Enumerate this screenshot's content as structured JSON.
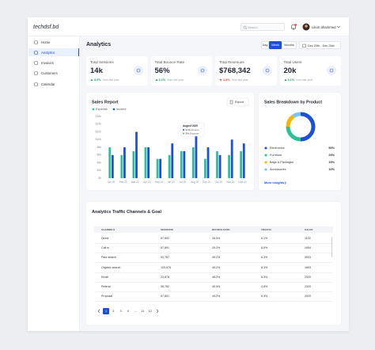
{
  "header": {
    "logo": "techdsf.bd",
    "search": "Search",
    "user": "Likon ahammed"
  },
  "sidebar": {
    "items": [
      "Home",
      "Analytics",
      "Invoices",
      "Customers",
      "Calendar"
    ],
    "active": 1
  },
  "page": {
    "title": "Analytics",
    "periods": [
      "Day",
      "Week",
      "Months"
    ],
    "active_period": 1,
    "date_range": "Dec 20th - Dec 26th"
  },
  "kpis": [
    {
      "label": "Total Sessions",
      "value": "14k",
      "change": "3.5%",
      "trend": "up",
      "note": "from last year"
    },
    {
      "label": "Total Bounce Rate",
      "value": "56%",
      "change": "3.1%",
      "trend": "up",
      "note": "from last year"
    },
    {
      "label": "Total Revenues",
      "value": "$768,342",
      "change": "1.8%",
      "trend": "down",
      "note": "from last year"
    },
    {
      "label": "Total Users",
      "value": "20k",
      "change": "3.1%",
      "trend": "up",
      "note": "from last year"
    }
  ],
  "chart_data": [
    {
      "type": "bar",
      "title": "Sales Report",
      "button": "Export",
      "categories": [
        "Jan 20",
        "Feb 20",
        "Mar 20",
        "Apr 20",
        "May 20",
        "Jun 20",
        "Jul 20",
        "Aug 20",
        "Sep 20",
        "Oct 20",
        "Nov 20",
        "Dec 20"
      ],
      "series": [
        {
          "name": "Expense",
          "color": "#2bc196",
          "values": [
            8000,
            6000,
            7000,
            8000,
            5000,
            6000,
            7000,
            8000,
            5000,
            7000,
            6000,
            7000
          ]
        },
        {
          "name": "Income",
          "color": "#1d4fd7",
          "values": [
            6000,
            8000,
            12000,
            8000,
            5000,
            9000,
            7000,
            12000,
            8000,
            6000,
            10000,
            9000
          ]
        }
      ],
      "ylim": [
        0,
        16000
      ],
      "yticks": [
        {
          "value": 0,
          "label": "$0"
        },
        {
          "value": 2000,
          "label": "$2k"
        },
        {
          "value": 4000,
          "label": "$4k"
        },
        {
          "value": 6000,
          "label": "$6k"
        },
        {
          "value": 8000,
          "label": "$8k"
        },
        {
          "value": 10000,
          "label": "$10k"
        },
        {
          "value": 12000,
          "label": "$12k"
        },
        {
          "value": 14000,
          "label": "$14k"
        },
        {
          "value": 16000,
          "label": "$16k"
        }
      ],
      "grid": false,
      "tooltip": {
        "title": "August 2020",
        "lines": [
          "$12k Income",
          "$8k Expense"
        ]
      }
    },
    {
      "type": "pie",
      "title": "Sales Breakdown by Product",
      "categories": [
        "Electronics",
        "Furniture",
        "Bags & Packages",
        "Accessories"
      ],
      "values": [
        50,
        25,
        15,
        10
      ],
      "value_labels": [
        "50%",
        "25%",
        "15%",
        "10%"
      ],
      "colors": [
        "#1d4fd7",
        "#2bc196",
        "#f4b400",
        "#7cc3f7"
      ],
      "donut": true,
      "link": "More insights"
    }
  ],
  "table": {
    "title": "Analytics Traffic Channels & Goal",
    "columns": [
      "CHANNELS",
      "SESSIONS",
      "BOUNCE RATE",
      "TRAFFIC",
      "SALES"
    ],
    "rows": [
      [
        "Direct",
        "67,892",
        "26.5%",
        "8.1%",
        "1102"
      ],
      [
        "Call in",
        "57,891",
        "29.2%",
        "8.5%",
        "1654"
      ],
      [
        "Paid search",
        "53,787",
        "49.2%",
        "8.3%",
        "3003"
      ],
      [
        "Organic search",
        "103,679",
        "49.2%",
        "8.3%",
        "1603"
      ],
      [
        "Email",
        "23,878",
        "48.2%",
        "8.3%",
        "2520"
      ],
      [
        "Referal",
        "38,782",
        "49.5%",
        "4.8%",
        "2320"
      ],
      [
        "Proposal",
        "57,801",
        "49.2%",
        "8.4%",
        "2020"
      ]
    ]
  },
  "pagination": {
    "pages": [
      "1",
      "2",
      "3",
      "4",
      "...",
      "11",
      "12"
    ],
    "active": 0
  }
}
